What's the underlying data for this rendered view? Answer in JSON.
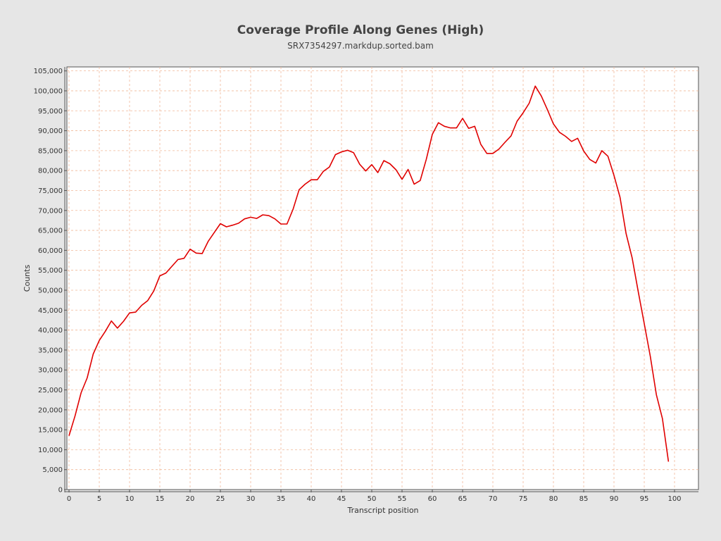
{
  "chart_data": {
    "type": "line",
    "title": "Coverage Profile Along Genes (High)",
    "subtitle": "SRX7354297.markdup.sorted.bam",
    "xlabel": "Transcript position",
    "ylabel": "Counts",
    "xlim": [
      0,
      104
    ],
    "ylim": [
      0,
      106000
    ],
    "x_ticks": [
      0,
      5,
      10,
      15,
      20,
      25,
      30,
      35,
      40,
      45,
      50,
      55,
      60,
      65,
      70,
      75,
      80,
      85,
      90,
      95,
      100
    ],
    "y_ticks": [
      0,
      5000,
      10000,
      15000,
      20000,
      25000,
      30000,
      35000,
      40000,
      45000,
      50000,
      55000,
      60000,
      65000,
      70000,
      75000,
      80000,
      85000,
      90000,
      95000,
      100000,
      105000
    ],
    "y_tick_labels": [
      "0",
      "5,000",
      "10,000",
      "15,000",
      "20,000",
      "25,000",
      "30,000",
      "35,000",
      "40,000",
      "45,000",
      "50,000",
      "55,000",
      "60,000",
      "65,000",
      "70,000",
      "75,000",
      "80,000",
      "85,000",
      "90,000",
      "95,000",
      "100,000",
      "105,000"
    ],
    "grid": true,
    "colors": {
      "line": "#e00000",
      "grid": "#f0b898",
      "plot_background": "#ffffff",
      "page_background": "#e6e6e6",
      "axis": "#555555"
    },
    "series": [
      {
        "x": [
          0,
          1,
          2,
          3,
          4,
          5,
          6,
          7,
          8,
          9,
          10,
          11,
          12,
          13,
          14,
          15,
          16,
          17,
          18,
          19,
          20,
          21,
          22,
          23,
          24,
          25,
          26,
          27,
          28,
          29,
          30,
          31,
          32,
          33,
          34,
          35,
          36,
          37,
          38,
          39,
          40,
          41,
          42,
          43,
          44,
          45,
          46,
          47,
          48,
          49,
          50,
          51,
          52,
          53,
          54,
          55,
          56,
          57,
          58,
          59,
          60,
          61,
          62,
          63,
          64,
          65,
          66,
          67,
          68,
          69,
          70,
          71,
          72,
          73,
          74,
          75,
          76,
          77,
          78,
          79,
          80,
          81,
          82,
          83,
          84,
          85,
          86,
          87,
          88,
          89,
          90,
          91,
          92,
          93,
          94,
          95,
          96,
          97,
          98,
          99
        ],
        "values": [
          13500,
          18500,
          24300,
          28000,
          34000,
          37400,
          39700,
          42300,
          40500,
          42200,
          44300,
          44500,
          46200,
          47400,
          49800,
          53600,
          54300,
          56000,
          57700,
          58000,
          60300,
          59300,
          59200,
          62300,
          64500,
          66700,
          65900,
          66300,
          66800,
          67900,
          68300,
          68000,
          68900,
          68700,
          67900,
          66600,
          66600,
          70300,
          75200,
          76600,
          77700,
          77700,
          79800,
          80900,
          84000,
          84700,
          85100,
          84500,
          81600,
          79900,
          81500,
          79500,
          82500,
          81700,
          80200,
          77800,
          80300,
          76600,
          77500,
          82800,
          89100,
          92000,
          91100,
          90700,
          90700,
          93100,
          90600,
          91100,
          86600,
          84300,
          84300,
          85400,
          87100,
          88700,
          92400,
          94500,
          96900,
          101200,
          98700,
          95300,
          91700,
          89600,
          88600,
          87300,
          88100,
          84900,
          82800,
          81900,
          85000,
          83600,
          78800,
          73300,
          64200,
          58100,
          49700,
          41600,
          33400,
          23800,
          17800,
          7000
        ]
      }
    ]
  }
}
